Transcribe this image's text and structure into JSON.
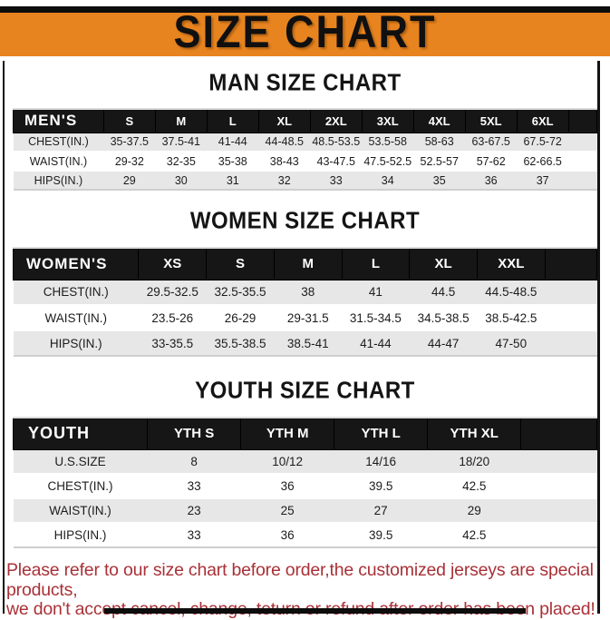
{
  "title": "SIZE CHART",
  "colors": {
    "banner_orange": "#E8841F",
    "frame_black": "#0D0D0D",
    "table_header_bg": "#161616",
    "row_stripe_gray": "#E7E7E7",
    "notice_red": "#A93137"
  },
  "sections": [
    {
      "heading": "MAN SIZE CHART",
      "table": {
        "header": [
          "MEN'S",
          "S",
          "M",
          "L",
          "XL",
          "2XL",
          "3XL",
          "4XL",
          "5XL",
          "6XL"
        ],
        "rows": [
          [
            "CHEST(IN.)",
            "35-37.5",
            "37.5-41",
            "41-44",
            "44-48.5",
            "48.5-53.5",
            "53.5-58",
            "58-63",
            "63-67.5",
            "67.5-72"
          ],
          [
            "WAIST(IN.)",
            "29-32",
            "32-35",
            "35-38",
            "38-43",
            "43-47.5",
            "47.5-52.5",
            "52.5-57",
            "57-62",
            "62-66.5"
          ],
          [
            "HIPS(IN.)",
            "29",
            "30",
            "31",
            "32",
            "33",
            "34",
            "35",
            "36",
            "37"
          ]
        ]
      }
    },
    {
      "heading": "WOMEN SIZE CHART",
      "table": {
        "header": [
          "WOMEN'S",
          "XS",
          "S",
          "M",
          "L",
          "XL",
          "XXL"
        ],
        "rows": [
          [
            "CHEST(IN.)",
            "29.5-32.5",
            "32.5-35.5",
            "38",
            "41",
            "44.5",
            "44.5-48.5"
          ],
          [
            "WAIST(IN.)",
            "23.5-26",
            "26-29",
            "29-31.5",
            "31.5-34.5",
            "34.5-38.5",
            "38.5-42.5"
          ],
          [
            "HIPS(IN.)",
            "33-35.5",
            "35.5-38.5",
            "38.5-41",
            "41-44",
            "44-47",
            "47-50"
          ]
        ]
      }
    },
    {
      "heading": "YOUTH SIZE CHART",
      "table": {
        "header": [
          "YOUTH",
          "YTH S",
          "YTH M",
          "YTH L",
          "YTH XL"
        ],
        "rows": [
          [
            "U.S.SIZE",
            "8",
            "10/12",
            "14/16",
            "18/20"
          ],
          [
            "CHEST(IN.)",
            "33",
            "36",
            "39.5",
            "42.5"
          ],
          [
            "WAIST(IN.)",
            "23",
            "25",
            "27",
            "29"
          ],
          [
            "HIPS(IN.)",
            "33",
            "36",
            "39.5",
            "42.5"
          ]
        ]
      }
    }
  ],
  "notice": {
    "line1": "Please refer to our size chart before order,the customized jerseys are special products,",
    "line2": "we don't accept cancel, change, teturn or refund after order has been placed!"
  }
}
